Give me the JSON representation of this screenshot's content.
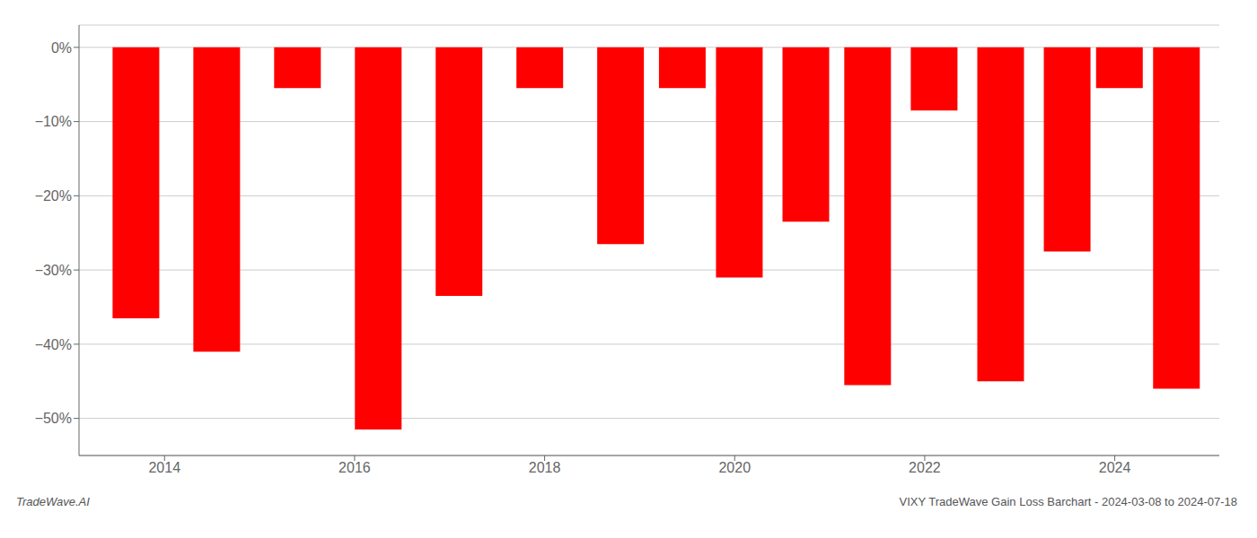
{
  "chart_data": {
    "type": "bar",
    "x": [
      2013.7,
      2014.55,
      2015.4,
      2016.25,
      2017.1,
      2017.95,
      2018.8,
      2019.45,
      2020.05,
      2020.75,
      2021.4,
      2022.1,
      2022.8,
      2023.5,
      2024.05,
      2024.65
    ],
    "values": [
      -36.5,
      -41.0,
      -5.5,
      -51.5,
      -33.5,
      -5.5,
      -26.5,
      -5.5,
      -31.0,
      -23.5,
      -45.5,
      -8.5,
      -45.0,
      -27.5,
      -5.5,
      -46.0
    ],
    "color": "#ff0000",
    "xlim": [
      2013.1,
      2025.1
    ],
    "ylim": [
      -55,
      3
    ],
    "xticks": [
      2014,
      2016,
      2018,
      2020,
      2022,
      2024
    ],
    "yticks": [
      {
        "value": 0,
        "label": "0%"
      },
      {
        "value": -10,
        "label": "−10%"
      },
      {
        "value": -20,
        "label": "−20%"
      },
      {
        "value": -30,
        "label": "−30%"
      },
      {
        "value": -40,
        "label": "−40%"
      },
      {
        "value": -50,
        "label": "−50%"
      }
    ],
    "grid": true,
    "annotations": [
      "TradeWave.AI",
      "VIXY TradeWave Gain Loss Barchart - 2024-03-08 to 2024-07-18"
    ]
  }
}
